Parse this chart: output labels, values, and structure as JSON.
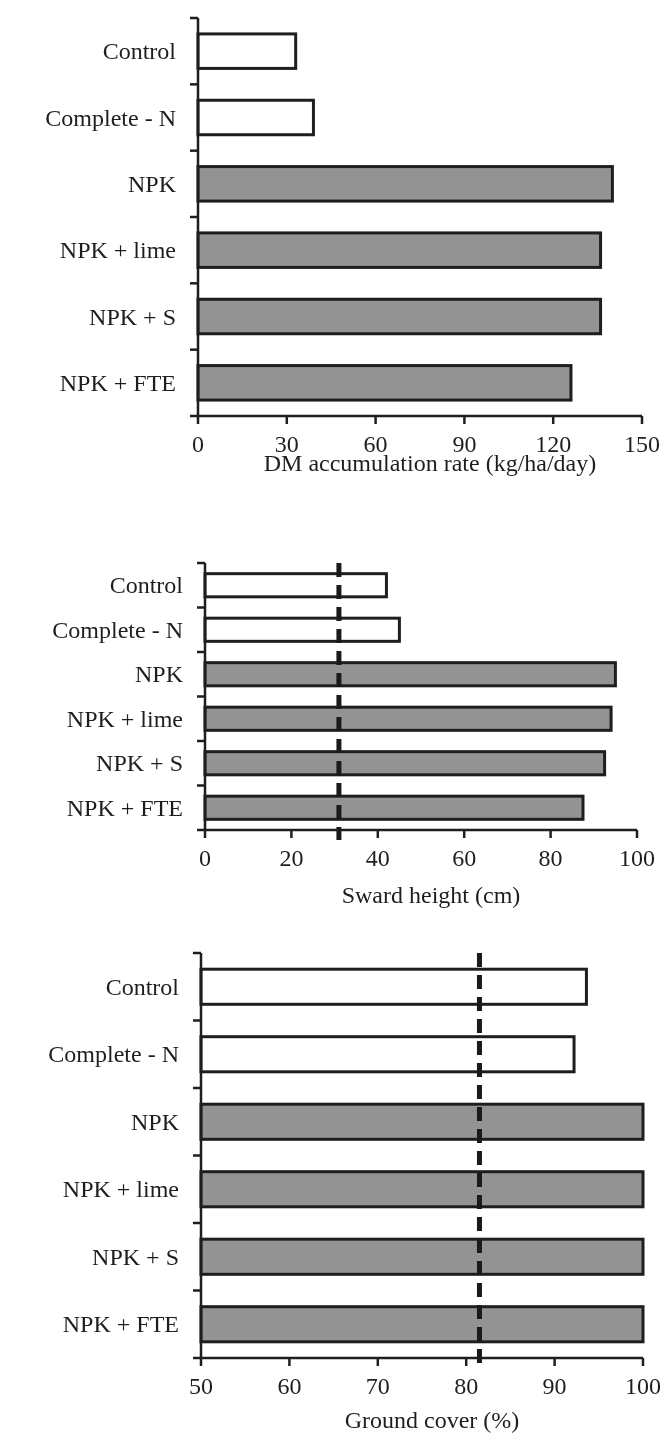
{
  "chart_data": [
    {
      "type": "bar",
      "orientation": "horizontal",
      "xlabel": "DM accumulation rate (kg/ha/day)",
      "categories": [
        "Control",
        "Complete - N",
        "NPK",
        "NPK + lime",
        "NPK + S",
        "NPK + FTE"
      ],
      "values": [
        33,
        39,
        140,
        136,
        136,
        126
      ],
      "colors": [
        "#ffffff",
        "#ffffff",
        "#939393",
        "#939393",
        "#939393",
        "#939393"
      ],
      "xlim": [
        0,
        150
      ],
      "xticks": [
        0,
        30,
        60,
        90,
        120,
        150
      ],
      "grid": false
    },
    {
      "type": "bar",
      "orientation": "horizontal",
      "xlabel": "Sward height (cm)",
      "categories": [
        "Control",
        "Complete - N",
        "NPK",
        "NPK + lime",
        "NPK + S",
        "NPK + FTE"
      ],
      "values": [
        42,
        45,
        95,
        94,
        92.5,
        87.5
      ],
      "colors": [
        "#ffffff",
        "#ffffff",
        "#939393",
        "#939393",
        "#939393",
        "#939393"
      ],
      "xlim": [
        0,
        100
      ],
      "xticks": [
        0,
        20,
        40,
        60,
        80,
        100
      ],
      "ref_lines": [
        {
          "axis": "x",
          "value": 31,
          "color": "#1a1a1a",
          "line_style": "dashed"
        }
      ],
      "grid": false
    },
    {
      "type": "bar",
      "orientation": "horizontal",
      "xlabel": "Ground cover (%)",
      "categories": [
        "Control",
        "Complete - N",
        "NPK",
        "NPK + lime",
        "NPK + S",
        "NPK + FTE"
      ],
      "values": [
        93.6,
        92.2,
        100,
        100,
        100,
        100
      ],
      "colors": [
        "#ffffff",
        "#ffffff",
        "#939393",
        "#939393",
        "#939393",
        "#939393"
      ],
      "xlim": [
        50,
        100
      ],
      "xticks": [
        50,
        60,
        70,
        80,
        90,
        100
      ],
      "ref_lines": [
        {
          "axis": "x",
          "value": 81.5,
          "color": "#1a1a1a",
          "line_style": "dashed"
        }
      ],
      "grid": false
    }
  ]
}
